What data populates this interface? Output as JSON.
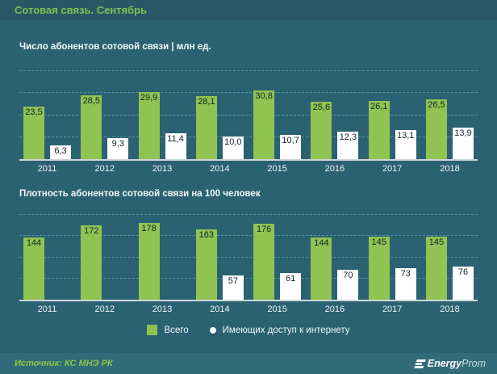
{
  "header": {
    "title": "Сотовая связь. Сентябрь"
  },
  "colors": {
    "header_bg": "#2a5766",
    "body_bg": "#2b6271",
    "footer_bg": "#306c79",
    "bar_green": "#90c351",
    "bar_white": "#ffffff",
    "title_green": "#7cc24e",
    "source_green": "#8cc63f",
    "gridline_blue": "#538ea5",
    "value_label_dark": "#10242f"
  },
  "chart_data": [
    {
      "type": "bar",
      "title": "Число абонентов сотовой связи | млн ед.",
      "categories": [
        "2011",
        "2012",
        "2013",
        "2014",
        "2015",
        "2016",
        "2017",
        "2018"
      ],
      "series": [
        {
          "name": "Всего",
          "values": [
            23.5,
            28.5,
            29.9,
            28.1,
            30.8,
            25.6,
            26.1,
            26.5
          ],
          "labels": [
            "23,5",
            "28,5",
            "29,9",
            "28,1",
            "30,8",
            "25,6",
            "26,1",
            "26,5"
          ]
        },
        {
          "name": "Имеющих доступ к интернету",
          "values": [
            6.3,
            9.3,
            11.4,
            10.0,
            10.7,
            12.3,
            13.1,
            13.9
          ],
          "labels": [
            "6,3",
            "9,3",
            "11,4",
            "10,0",
            "10,7",
            "12,3",
            "13,1",
            "13,9"
          ]
        }
      ],
      "xlabel": "",
      "ylabel": "",
      "ylim": [
        0,
        40
      ],
      "grid_step": 10,
      "grid": true,
      "legend_position": "bottom-center"
    },
    {
      "type": "bar",
      "title": "Плотность абонентов сотовой связи на 100 человек",
      "categories": [
        "2011",
        "2012",
        "2013",
        "2014",
        "2015",
        "2016",
        "2017",
        "2018"
      ],
      "series": [
        {
          "name": "Всего",
          "values": [
            144,
            172,
            178,
            163,
            176,
            144,
            145,
            145
          ],
          "labels": [
            "144",
            "172",
            "178",
            "163",
            "176",
            "144",
            "145",
            "145"
          ]
        },
        {
          "name": "Имеющих доступ к интернету",
          "values": [
            null,
            null,
            null,
            57,
            61,
            70,
            73,
            76
          ],
          "labels": [
            "",
            "",
            "",
            "57",
            "61",
            "70",
            "73",
            "76"
          ]
        }
      ],
      "xlabel": "",
      "ylabel": "",
      "ylim": [
        0,
        200
      ],
      "grid_step": 50,
      "grid": true,
      "legend_position": "bottom-center"
    }
  ],
  "legend": {
    "items": [
      {
        "label": "Всего",
        "swatch": "green-square"
      },
      {
        "label": "Имеющих доступ к интернету",
        "swatch": "white-circle"
      }
    ]
  },
  "footer": {
    "source": "Источник: КС МНЭ РК",
    "brand": {
      "bold": "Energy",
      "light": "Prom"
    }
  }
}
